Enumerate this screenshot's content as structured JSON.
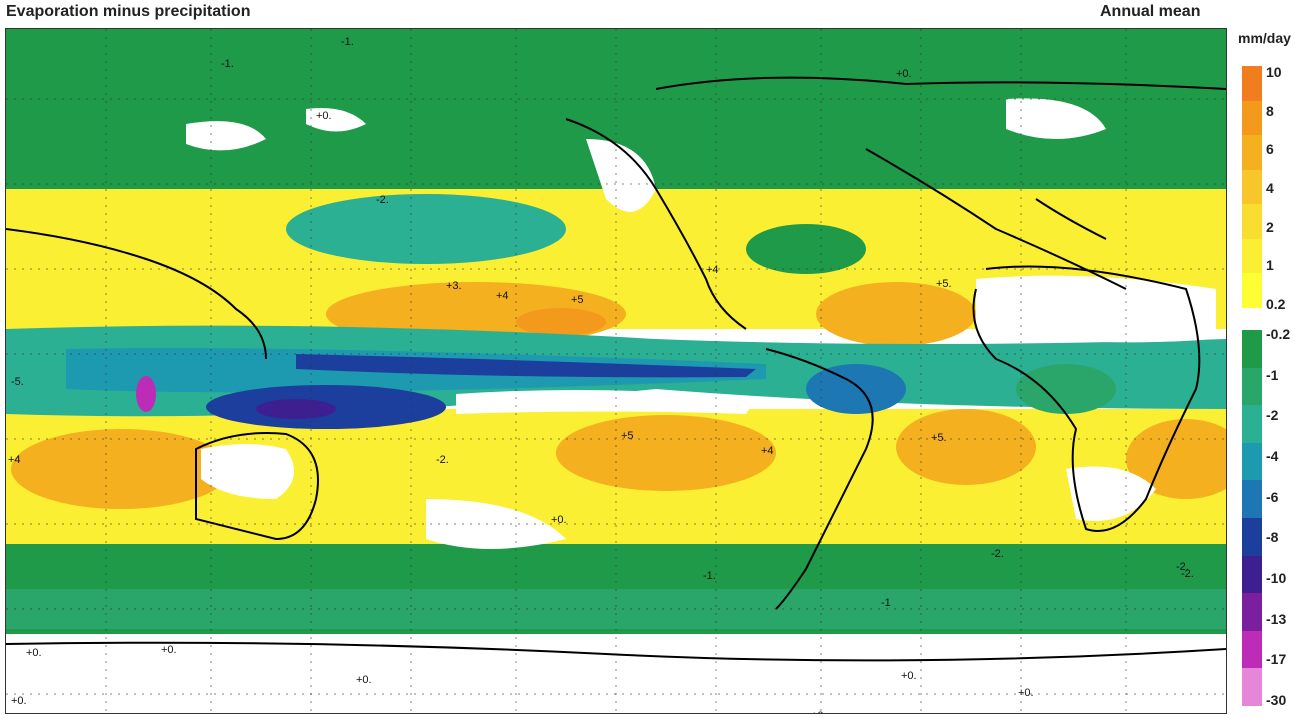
{
  "header": {
    "title": "Evaporation minus precipitation",
    "period": "Annual mean"
  },
  "colorbar": {
    "units": "mm/day",
    "positive_labels": [
      "10",
      "8",
      "6",
      "4",
      "2",
      "1",
      "0.2"
    ],
    "negative_labels": [
      "-0.2",
      "-1",
      "-2",
      "-4",
      "-6",
      "-8",
      "-10",
      "-13",
      "-17",
      "-30"
    ],
    "positive_colors": [
      "#f07d1e",
      "#f39a1c",
      "#f5b01f",
      "#f7c62a",
      "#f9dd2f",
      "#fbef34",
      "#ffff33"
    ],
    "negative_colors": [
      "#1f9a49",
      "#2aa66a",
      "#2bb093",
      "#1d9ab0",
      "#1c77b3",
      "#1c3e9c",
      "#3d1f8f",
      "#7a1f9e",
      "#bc2cb6",
      "#e686d8"
    ]
  },
  "map": {
    "colors": {
      "wet_light": "#1f9a49",
      "wet_mid": "#2aa66a",
      "wet_teal": "#2bb093",
      "wet_cyan": "#1d9ab0",
      "wet_blue": "#1c77b3",
      "wet_deep": "#1c3e9c",
      "wet_purple": "#3d1f8f",
      "wet_magenta": "#bc2cb6",
      "dry_pale": "#ffff33",
      "dry_yellow": "#fbef34",
      "dry_orange": "#f5b01f",
      "neutral": "#ffffff"
    },
    "contour_labels": [
      "-1.",
      "-1.",
      "+0.",
      "+0.",
      "-2.",
      "+3.",
      "+4",
      "+5",
      "+4",
      "+5.",
      "-5.",
      "-2.",
      "+5",
      "+4",
      "+5.",
      "+4",
      "-2.",
      "+0.",
      "-1.",
      "-2.",
      "-2.",
      "-1",
      "+0.",
      "+0.",
      "+0.",
      "+0.",
      "+0.",
      "+0.",
      "+0."
    ]
  }
}
